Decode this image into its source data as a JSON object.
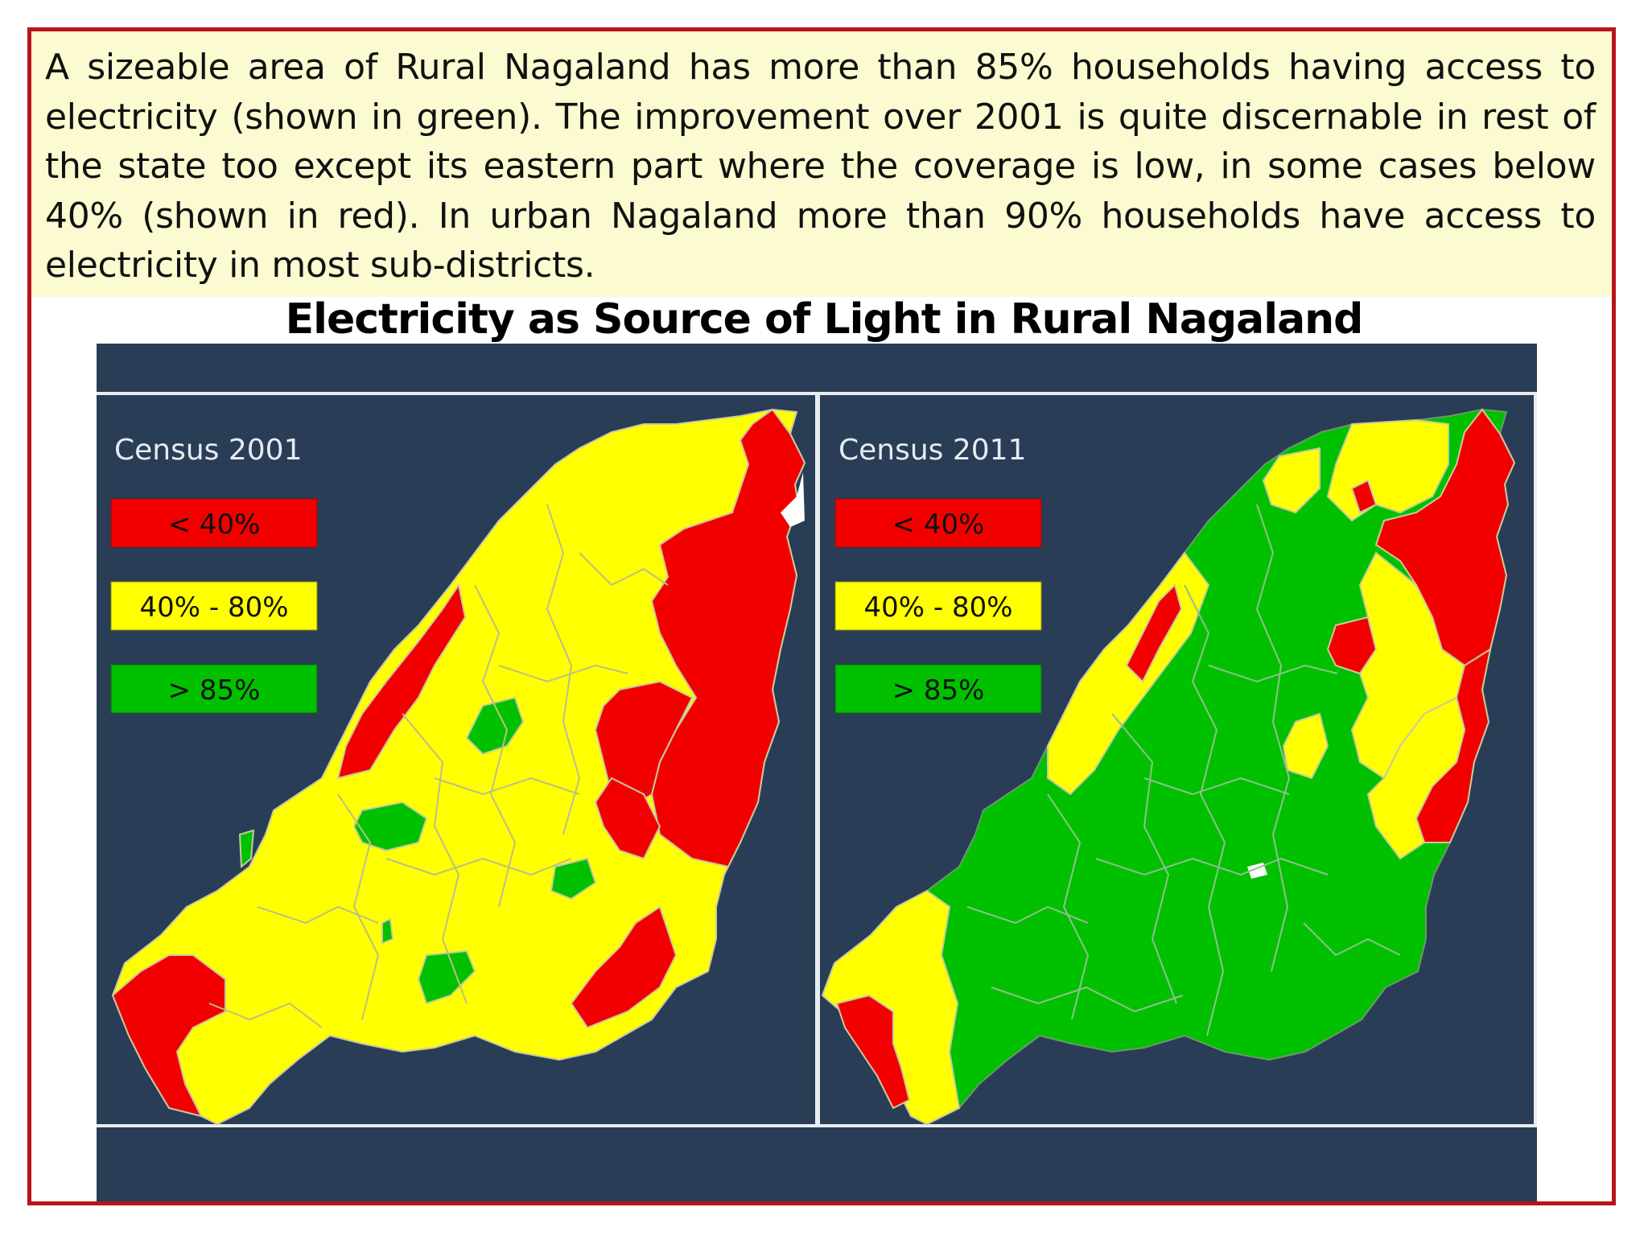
{
  "note": {
    "text": "A sizeable area of Rural Nagaland has more than 85% households having access to electricity (shown in green). The improvement over 2001 is quite discernable in rest of the state too except its eastern part where the coverage is low, in some cases below 40% (shown in red). In urban Nagaland more than 90% households have access to electricity in most sub-districts."
  },
  "title": "Electricity as Source of Light in Rural Nagaland",
  "maps": [
    {
      "label": "Census 2001",
      "legend": [
        {
          "label": "< 40%",
          "color": "#f20000"
        },
        {
          "label": "40% - 80%",
          "color": "#ffff00"
        },
        {
          "label": "> 85%",
          "color": "#00c000"
        }
      ]
    },
    {
      "label": "Census 2011",
      "legend": [
        {
          "label": "< 40%",
          "color": "#f20000"
        },
        {
          "label": "40% - 80%",
          "color": "#ffff00"
        },
        {
          "label": "> 85%",
          "color": "#00c000"
        }
      ]
    }
  ],
  "colors": {
    "panel_background": "#2a3d56",
    "frame_border": "#b8151b",
    "note_background": "#fbfad0"
  }
}
